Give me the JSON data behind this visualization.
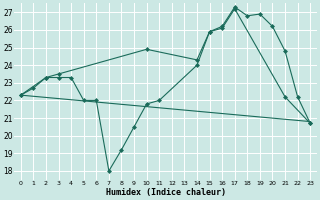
{
  "xlabel": "Humidex (Indice chaleur)",
  "background_color": "#cce8e4",
  "grid_color": "#ffffff",
  "line_color": "#1a6b5a",
  "xlim": [
    -0.5,
    23.5
  ],
  "ylim": [
    17.5,
    27.5
  ],
  "yticks": [
    18,
    19,
    20,
    21,
    22,
    23,
    24,
    25,
    26,
    27
  ],
  "xticks": [
    0,
    1,
    2,
    3,
    4,
    5,
    6,
    7,
    8,
    9,
    10,
    11,
    12,
    13,
    14,
    15,
    16,
    17,
    18,
    19,
    20,
    21,
    22,
    23
  ],
  "line1_x": [
    0,
    1,
    2,
    3,
    4,
    5,
    6,
    7,
    8,
    9,
    10,
    11,
    14,
    15,
    16,
    17,
    21,
    23
  ],
  "line1_y": [
    22.3,
    22.7,
    23.3,
    23.3,
    23.3,
    22.0,
    22.0,
    18.0,
    19.2,
    20.5,
    21.8,
    22.0,
    24.0,
    25.9,
    26.1,
    27.2,
    22.2,
    20.7
  ],
  "line2_x": [
    0,
    2,
    3,
    10,
    14,
    15,
    16,
    17,
    18,
    19,
    20,
    21,
    22,
    23
  ],
  "line2_y": [
    22.3,
    23.3,
    23.5,
    24.9,
    24.3,
    25.9,
    26.2,
    27.3,
    26.8,
    26.9,
    26.2,
    24.8,
    22.2,
    20.7
  ],
  "line3_x": [
    0,
    23
  ],
  "line3_y": [
    22.3,
    20.8
  ]
}
